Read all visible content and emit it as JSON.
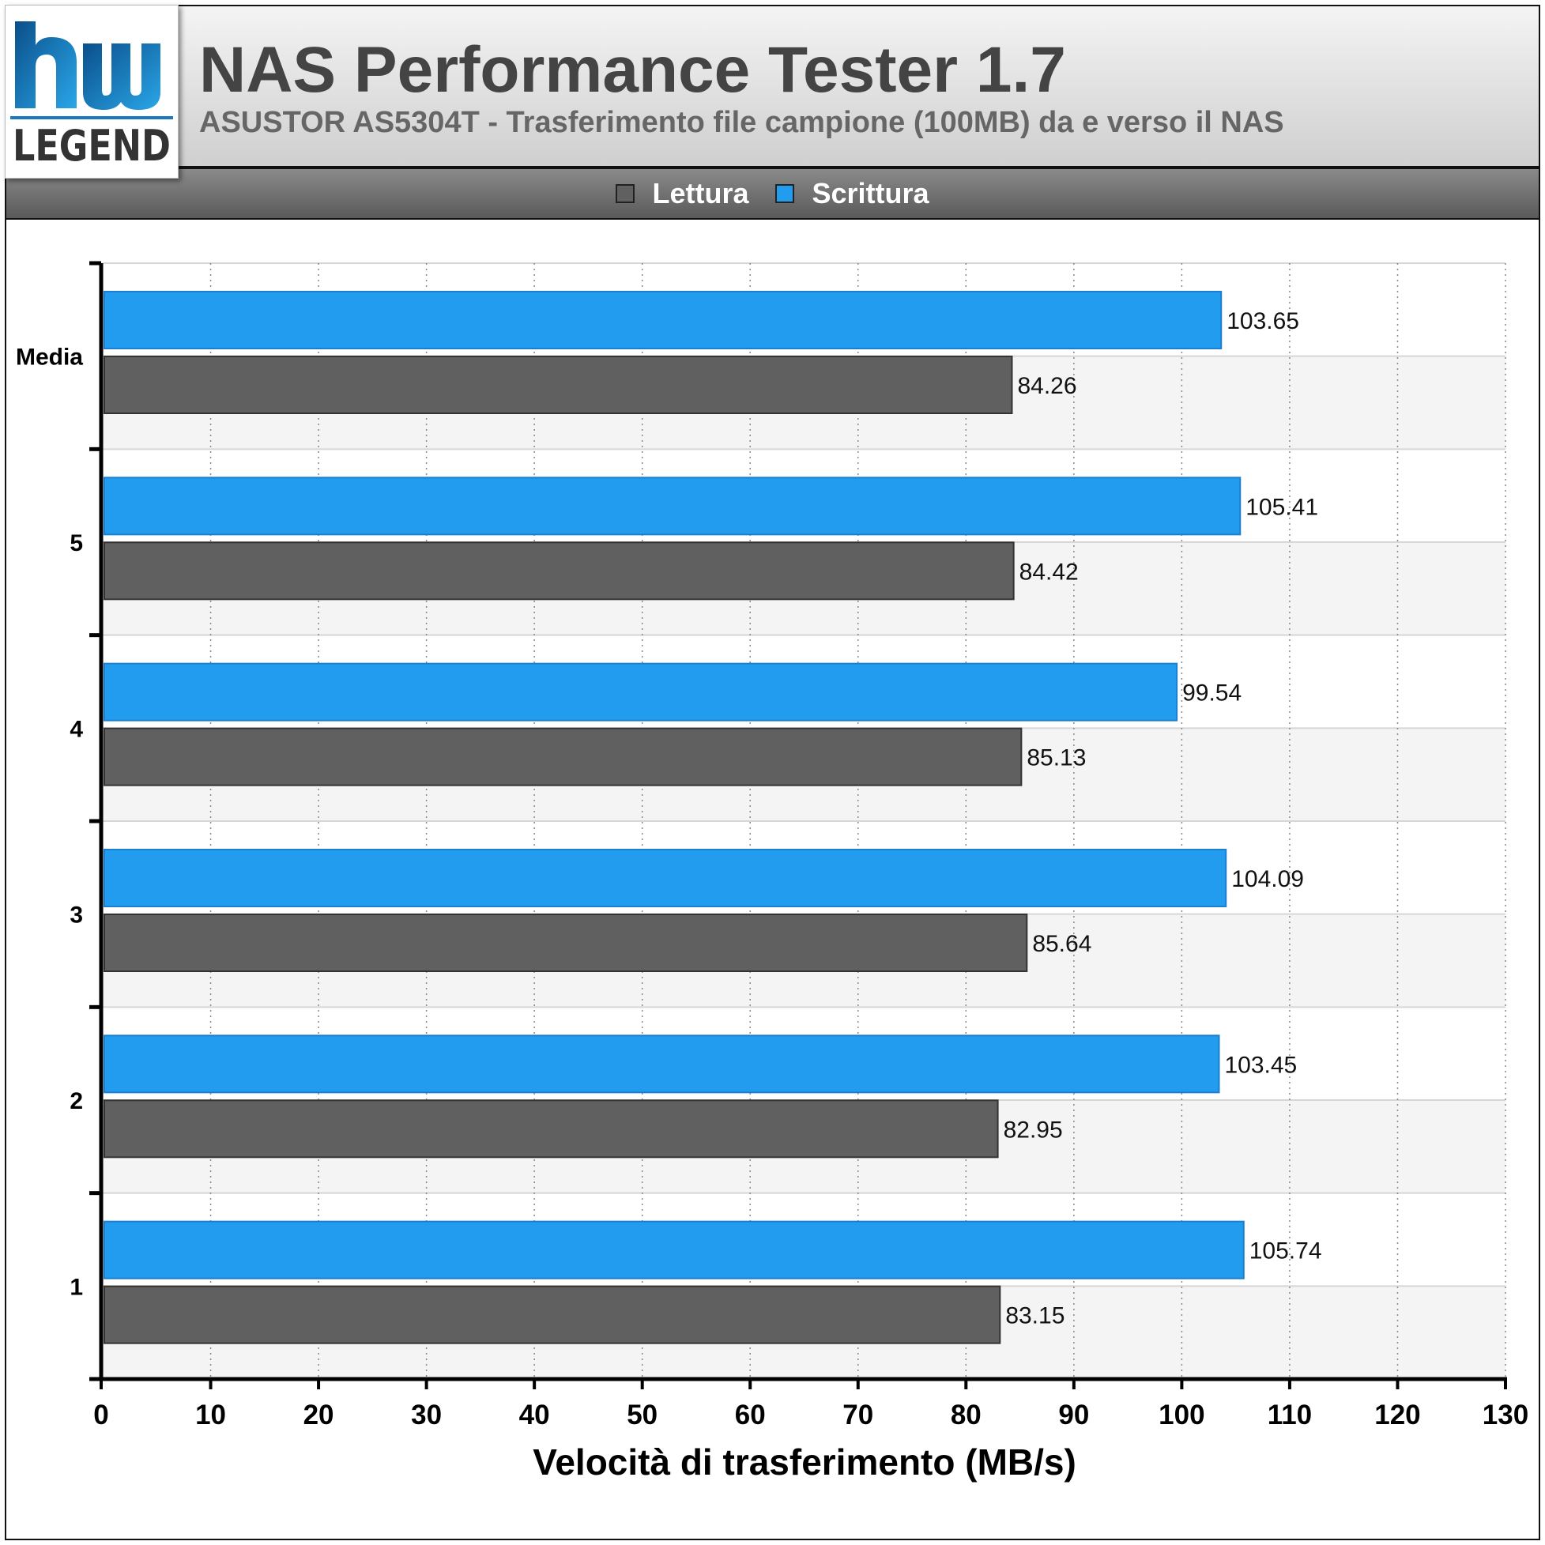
{
  "header": {
    "title": "NAS Performance Tester 1.7",
    "subtitle": "ASUSTOR AS5304T - Trasferimento file campione (100MB) da e verso il NAS",
    "logo_text": "hw LEGEND"
  },
  "colors": {
    "read": "#606060",
    "write": "#229cef",
    "plot_band": "#f4f4f4"
  },
  "chart_data": {
    "type": "bar",
    "orientation": "horizontal",
    "categories": [
      "Media",
      "5",
      "4",
      "3",
      "2",
      "1"
    ],
    "series": [
      {
        "name": "Scrittura",
        "values": [
          103.65,
          105.41,
          99.54,
          104.09,
          103.45,
          105.74
        ]
      },
      {
        "name": "Lettura",
        "values": [
          84.26,
          84.42,
          85.13,
          85.64,
          82.95,
          83.15
        ]
      }
    ],
    "data_labels": {
      "Scrittura": [
        "103.65",
        "105.41",
        "99.54",
        "104.09",
        "103.45",
        "105.74"
      ],
      "Lettura": [
        "84.26",
        "84.42",
        "85.13",
        "85.64",
        "82.95",
        "83.15"
      ]
    },
    "xlabel": "Velocità di trasferimento (MB/s)",
    "ylabel": "",
    "xlim": [
      0,
      130
    ],
    "xticks": [
      "0",
      "10",
      "20",
      "30",
      "40",
      "50",
      "60",
      "70",
      "80",
      "90",
      "100",
      "110",
      "120",
      "130"
    ],
    "legend": {
      "position": "top-center",
      "entries": [
        "Lettura",
        "Scrittura"
      ]
    },
    "grid": "vertical dotted"
  }
}
